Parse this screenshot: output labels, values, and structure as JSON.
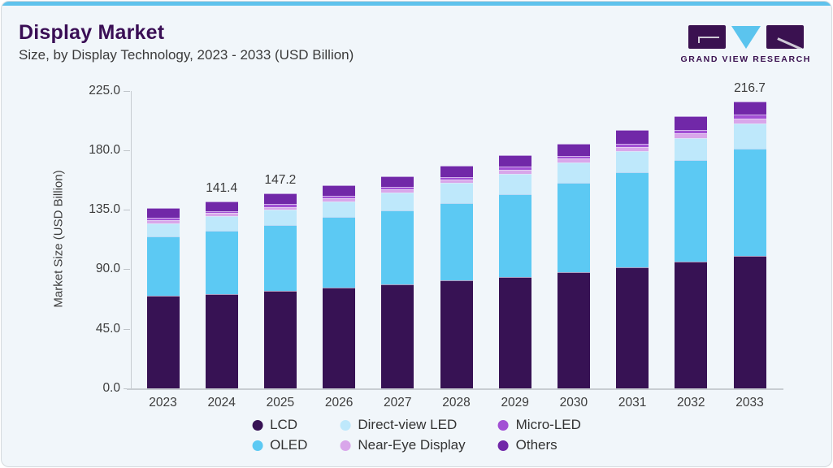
{
  "header": {
    "title": "Display Market",
    "subtitle": "Size, by Display Technology, 2023 - 2033 (USD Billion)"
  },
  "logo": {
    "text": "GRAND VIEW RESEARCH"
  },
  "colors": {
    "card_background": "#f1f6fa",
    "top_bar": "#5fc2ec",
    "title": "#3a0e55",
    "axis_line": "#c8cdd2",
    "tick_text": "#3c3c3c"
  },
  "chart_data": {
    "type": "bar",
    "stacked": true,
    "title": "Display Market Size, by Display Technology, 2023 - 2033 (USD Billion)",
    "xlabel": "",
    "ylabel": "Market Size (USD Billion)",
    "ylim": [
      0,
      225
    ],
    "yticks": [
      0,
      45,
      90,
      135,
      180,
      225
    ],
    "ytick_labels": [
      "0.0",
      "45.0",
      "90.0",
      "135.0",
      "180.0",
      "225.0"
    ],
    "grid": false,
    "legend_position": "bottom",
    "categories": [
      "2023",
      "2024",
      "2025",
      "2026",
      "2027",
      "2028",
      "2029",
      "2030",
      "2031",
      "2032",
      "2033"
    ],
    "series": [
      {
        "name": "LCD",
        "color": "#371254",
        "values": [
          69.8,
          71.5,
          73.7,
          76.2,
          78.8,
          81.9,
          84.4,
          88.0,
          91.7,
          96.0,
          100.0
        ]
      },
      {
        "name": "OLED",
        "color": "#5cc9f3",
        "values": [
          45.3,
          47.7,
          49.9,
          53.6,
          55.8,
          58.3,
          62.6,
          67.5,
          71.8,
          76.7,
          81.3
        ]
      },
      {
        "name": "Direct-view LED",
        "color": "#bee8fb",
        "values": [
          9.8,
          11.2,
          11.7,
          11.7,
          13.5,
          15.3,
          15.3,
          15.3,
          15.5,
          16.6,
          18.9
        ]
      },
      {
        "name": "Near-Eye Display",
        "color": "#d9a6ea",
        "values": [
          2.4,
          1.9,
          1.9,
          1.9,
          2.5,
          2.5,
          3.1,
          3.1,
          3.1,
          3.7,
          3.7
        ]
      },
      {
        "name": "Micro-LED",
        "color": "#a250d4",
        "values": [
          1.8,
          1.8,
          1.9,
          1.9,
          1.9,
          1.9,
          1.9,
          1.9,
          2.5,
          2.5,
          3.0
        ]
      },
      {
        "name": "Others",
        "color": "#7128a8",
        "values": [
          7.3,
          7.3,
          8.1,
          8.0,
          8.0,
          8.6,
          9.2,
          9.2,
          10.4,
          10.4,
          9.8
        ]
      }
    ],
    "totals": [
      136.4,
      141.4,
      147.2,
      153.3,
      160.5,
      168.5,
      176.5,
      185.0,
      195.0,
      205.9,
      216.7
    ],
    "shown_total_labels": {
      "2024": "141.4",
      "2025": "147.2",
      "2033": "216.7"
    },
    "legend_order": [
      "LCD",
      "Direct-view LED",
      "Micro-LED",
      "OLED",
      "Near-Eye Display",
      "Others"
    ]
  }
}
